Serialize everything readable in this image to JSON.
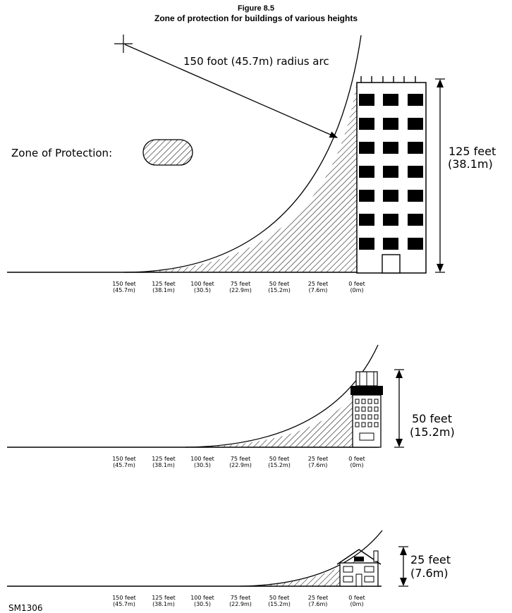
{
  "figure": {
    "number": "Figure 8.5",
    "title": "Zone of protection for buildings of various heights"
  },
  "radius_label": "150 foot (45.7m) radius arc",
  "legend_label": "Zone of Protection:",
  "source_code": "SM1306",
  "axis_ticks": [
    {
      "feet": "150 feet",
      "metric": "(45.7m)"
    },
    {
      "feet": "125 feet",
      "metric": "(38.1m)"
    },
    {
      "feet": "100 feet",
      "metric": "(30.5)"
    },
    {
      "feet": "75 feet",
      "metric": "(22.9m)"
    },
    {
      "feet": "50 feet",
      "metric": "(15.2m)"
    },
    {
      "feet": "25 feet",
      "metric": "(7.6m)"
    },
    {
      "feet": "0 feet",
      "metric": "(0m)"
    }
  ],
  "panels": [
    {
      "height_feet_label": "125 feet",
      "height_metric_label": "(38.1m)"
    },
    {
      "height_feet_label": "50 feet",
      "height_metric_label": "(15.2m)"
    },
    {
      "height_feet_label": "25 feet",
      "height_metric_label": "(7.6m)"
    }
  ],
  "colors": {
    "ink": "#000000",
    "paper": "#ffffff"
  }
}
